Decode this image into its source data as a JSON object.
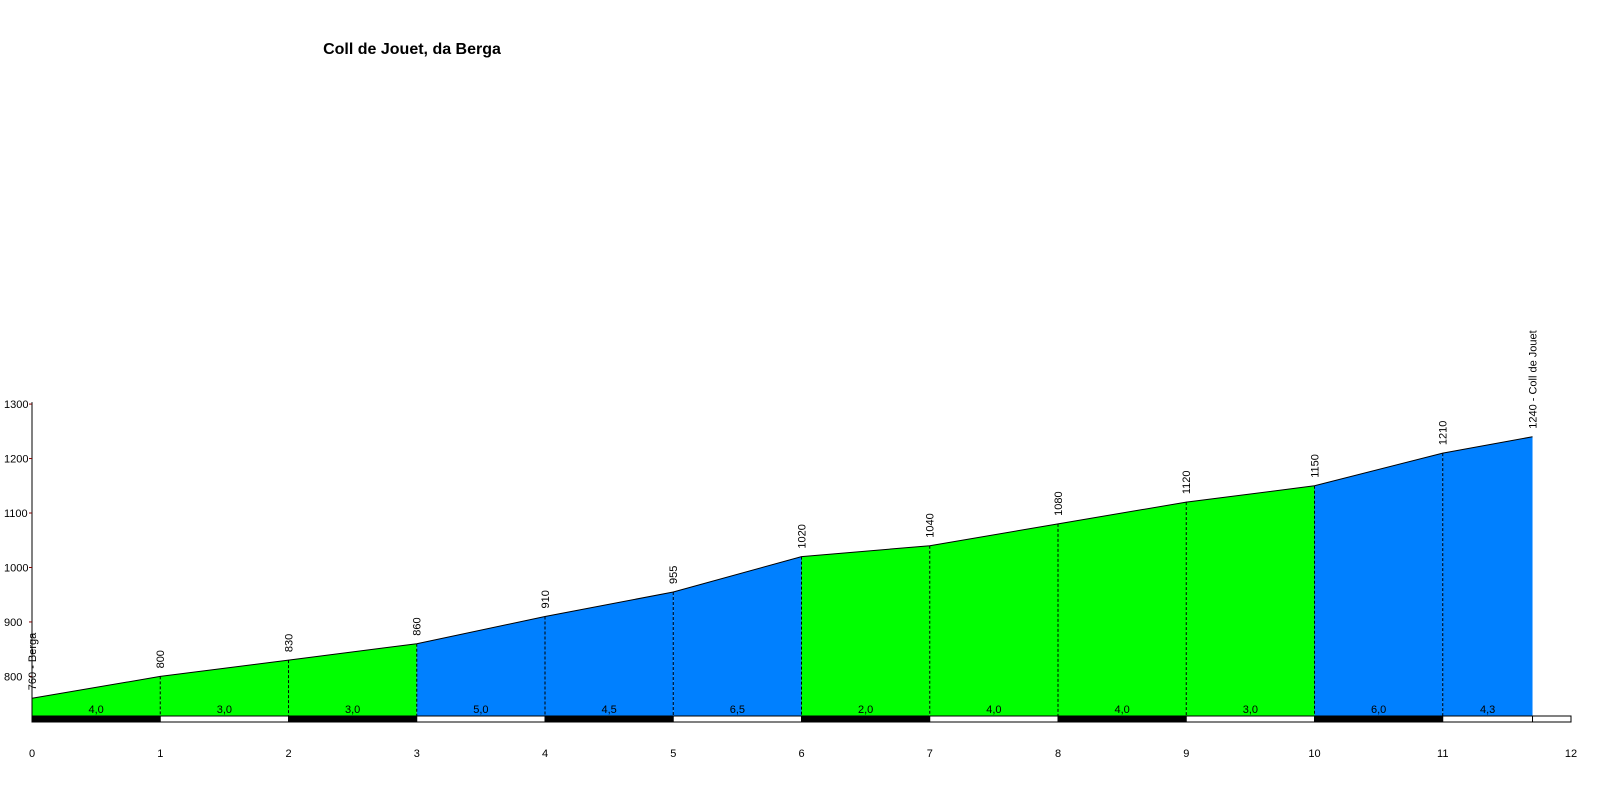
{
  "chart_data": {
    "type": "area",
    "title": "Coll de Jouet, da Berga",
    "xlabel": "",
    "ylabel": "",
    "xlim": [
      0,
      12
    ],
    "ylim": [
      720,
      1300
    ],
    "x_ticks": [
      "0",
      "1",
      "2",
      "3",
      "4",
      "5",
      "6",
      "7",
      "8",
      "9",
      "10",
      "11",
      "12"
    ],
    "y_ticks": [
      "800",
      "900",
      "1000",
      "1100",
      "1200",
      "1300"
    ],
    "points": [
      {
        "x": 0,
        "y": 760,
        "label": "760 - Berga"
      },
      {
        "x": 1,
        "y": 800,
        "label": "800"
      },
      {
        "x": 2,
        "y": 830,
        "label": "830"
      },
      {
        "x": 3,
        "y": 860,
        "label": "860"
      },
      {
        "x": 4,
        "y": 910,
        "label": "910"
      },
      {
        "x": 5,
        "y": 955,
        "label": "955"
      },
      {
        "x": 6,
        "y": 1020,
        "label": "1020"
      },
      {
        "x": 7,
        "y": 1040,
        "label": "1040"
      },
      {
        "x": 8,
        "y": 1080,
        "label": "1080"
      },
      {
        "x": 9,
        "y": 1120,
        "label": "1120"
      },
      {
        "x": 10,
        "y": 1150,
        "label": "1150"
      },
      {
        "x": 11,
        "y": 1210,
        "label": "1210"
      },
      {
        "x": 11.7,
        "y": 1240,
        "label": "1240 - Coll de Jouet"
      }
    ],
    "segments": [
      {
        "from": 0,
        "to": 1,
        "gradient": "4,0",
        "color": "#00ff00"
      },
      {
        "from": 1,
        "to": 2,
        "gradient": "3,0",
        "color": "#00ff00"
      },
      {
        "from": 2,
        "to": 3,
        "gradient": "3,0",
        "color": "#00ff00"
      },
      {
        "from": 3,
        "to": 4,
        "gradient": "5,0",
        "color": "#0080ff"
      },
      {
        "from": 4,
        "to": 5,
        "gradient": "4,5",
        "color": "#0080ff"
      },
      {
        "from": 5,
        "to": 6,
        "gradient": "6,5",
        "color": "#0080ff"
      },
      {
        "from": 6,
        "to": 7,
        "gradient": "2,0",
        "color": "#00ff00"
      },
      {
        "from": 7,
        "to": 8,
        "gradient": "4,0",
        "color": "#00ff00"
      },
      {
        "from": 8,
        "to": 9,
        "gradient": "4,0",
        "color": "#00ff00"
      },
      {
        "from": 9,
        "to": 10,
        "gradient": "3,0",
        "color": "#00ff00"
      },
      {
        "from": 10,
        "to": 11,
        "gradient": "6,0",
        "color": "#0080ff"
      },
      {
        "from": 11,
        "to": 11.7,
        "gradient": "4,3",
        "color": "#0080ff"
      }
    ]
  }
}
